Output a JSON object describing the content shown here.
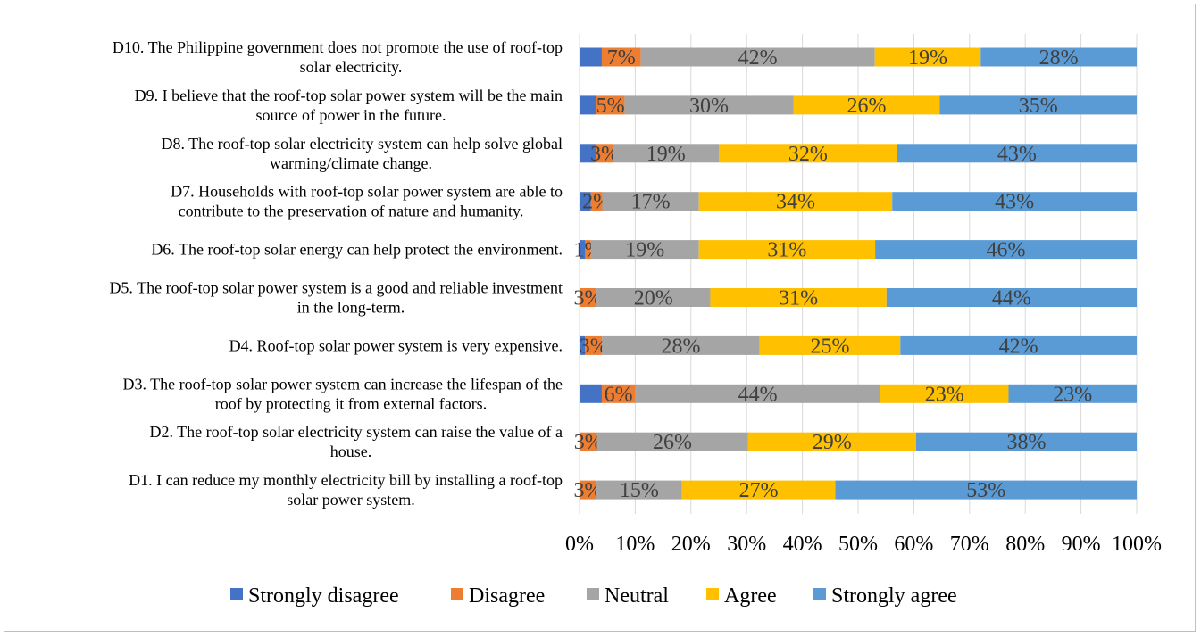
{
  "chart_data": {
    "type": "bar",
    "orientation": "horizontal",
    "stacked": "percent",
    "categories": [
      [
        "D10. The Philippine government does not promote the use of roof-top",
        "solar electricity."
      ],
      [
        "D9. I believe that the roof-top solar power system will be the main",
        "source of power in the future."
      ],
      [
        "D8. The roof-top solar electricity system can help solve global",
        "warming/climate change."
      ],
      [
        "D7. Households with roof-top solar power system are able to",
        "contribute to the preservation of nature and humanity."
      ],
      [
        "D6. The roof-top solar energy can help protect the environment."
      ],
      [
        "D5. The roof-top solar power system is a good and reliable investment",
        "in the long-term."
      ],
      [
        "D4. Roof-top solar power system is very expensive."
      ],
      [
        "D3. The roof-top solar power system can increase the lifespan of the",
        "roof by protecting it from external factors."
      ],
      [
        "D2. The roof-top solar electricity system can raise the value of a",
        "house."
      ],
      [
        "D1. I can reduce my monthly electricity bill by installing a roof-top",
        "solar power system."
      ]
    ],
    "series": [
      {
        "name": "Strongly disagree",
        "color": "#4472C4",
        "values": [
          4,
          3,
          3,
          2,
          1,
          0,
          1,
          4,
          0,
          0
        ],
        "labels": [
          "",
          "",
          "",
          "",
          "",
          "",
          "",
          "",
          "",
          ""
        ]
      },
      {
        "name": "Disagree",
        "color": "#ED7D31",
        "values": [
          7,
          5,
          3,
          2,
          1,
          3,
          3,
          6,
          3,
          3
        ],
        "labels": [
          "7%",
          "5%",
          "3%",
          "2%",
          "1%",
          "3%",
          "3%",
          "6%",
          "3%",
          "3%"
        ]
      },
      {
        "name": "Neutral",
        "color": "#A5A5A5",
        "values": [
          42,
          30,
          19,
          17,
          19,
          20,
          28,
          44,
          26,
          15
        ],
        "labels": [
          "42%",
          "30%",
          "19%",
          "17%",
          "19%",
          "20%",
          "28%",
          "44%",
          "26%",
          "15%"
        ]
      },
      {
        "name": "Agree",
        "color": "#FFC000",
        "values": [
          19,
          26,
          32,
          34,
          31,
          31,
          25,
          23,
          29,
          27
        ],
        "labels": [
          "19%",
          "26%",
          "32%",
          "34%",
          "31%",
          "31%",
          "25%",
          "23%",
          "29%",
          "27%"
        ]
      },
      {
        "name": "Strongly agree",
        "color": "#5B9BD5",
        "values": [
          28,
          35,
          43,
          43,
          46,
          44,
          42,
          23,
          38,
          53
        ],
        "labels": [
          "28%",
          "35%",
          "43%",
          "43%",
          "46%",
          "44%",
          "42%",
          "23%",
          "38%",
          "53%"
        ]
      }
    ],
    "x_ticks": [
      "0%",
      "10%",
      "20%",
      "30%",
      "40%",
      "50%",
      "60%",
      "70%",
      "80%",
      "90%",
      "100%"
    ],
    "xlim": [
      0,
      100
    ],
    "title": "",
    "xlabel": "",
    "ylabel": "",
    "grid": "vertical",
    "legend_position": "bottom"
  }
}
